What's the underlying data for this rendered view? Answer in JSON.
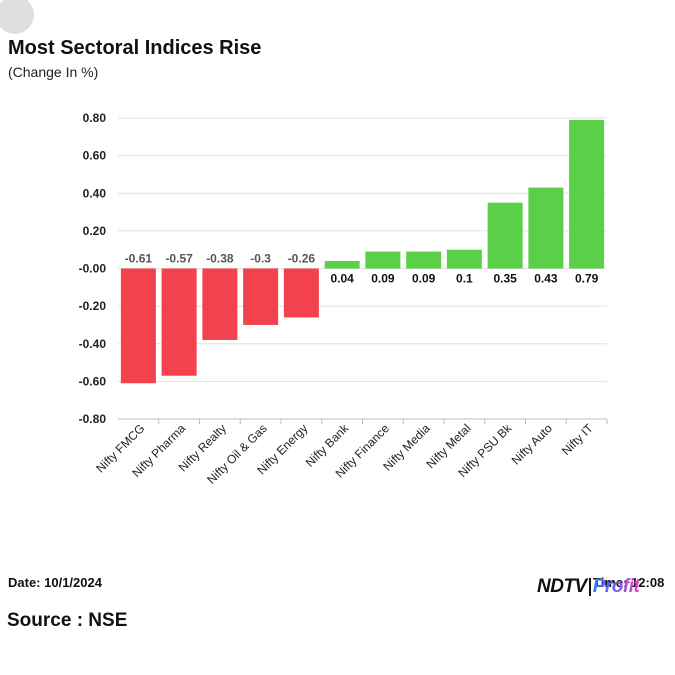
{
  "header": {
    "title": "Most Sectoral Indices Rise",
    "subtitle": "(Change In %)"
  },
  "footer": {
    "date": "Date: 10/1/2024",
    "time": "Time: 12:08",
    "source": "Source : NSE",
    "logo_text_main": "NDTV",
    "logo_text_accent": "Profit"
  },
  "colors": {
    "positive": "#5ccf48",
    "negative": "#f2424e",
    "grid": "#e0e0e0",
    "axis_text": "#222222"
  },
  "chart_data": {
    "type": "bar",
    "title": "Most Sectoral Indices Rise",
    "subtitle": "(Change In %)",
    "xlabel": "",
    "ylabel": "",
    "ylim": [
      -0.8,
      0.8
    ],
    "yticks": [
      "0.80",
      "0.60",
      "0.40",
      "0.20",
      "-0.00",
      "-0.20",
      "-0.40",
      "-0.60",
      "-0.80"
    ],
    "ytick_values": [
      0.8,
      0.6,
      0.4,
      0.2,
      0,
      -0.2,
      -0.4,
      -0.6,
      -0.8
    ],
    "grid": true,
    "categories": [
      "Nifty FMCG",
      "Nifty Pharma",
      "Nifty Realty",
      "Nifty Oil & Gas",
      "Nifty Energy",
      "Nifty Bank",
      "Nifty Finance",
      "Nifty Media",
      "Nifty Metal",
      "Nifty PSU Bk",
      "Nifty Auto",
      "Nifty IT"
    ],
    "values": [
      -0.61,
      -0.57,
      -0.38,
      -0.3,
      -0.26,
      0.04,
      0.09,
      0.09,
      0.1,
      0.35,
      0.43,
      0.79
    ],
    "value_labels": [
      "-0.61",
      "-0.57",
      "-0.38",
      "-0.3",
      "-0.26",
      "0.04",
      "0.09",
      "0.09",
      "0.1",
      "0.35",
      "0.43",
      "0.79"
    ]
  }
}
